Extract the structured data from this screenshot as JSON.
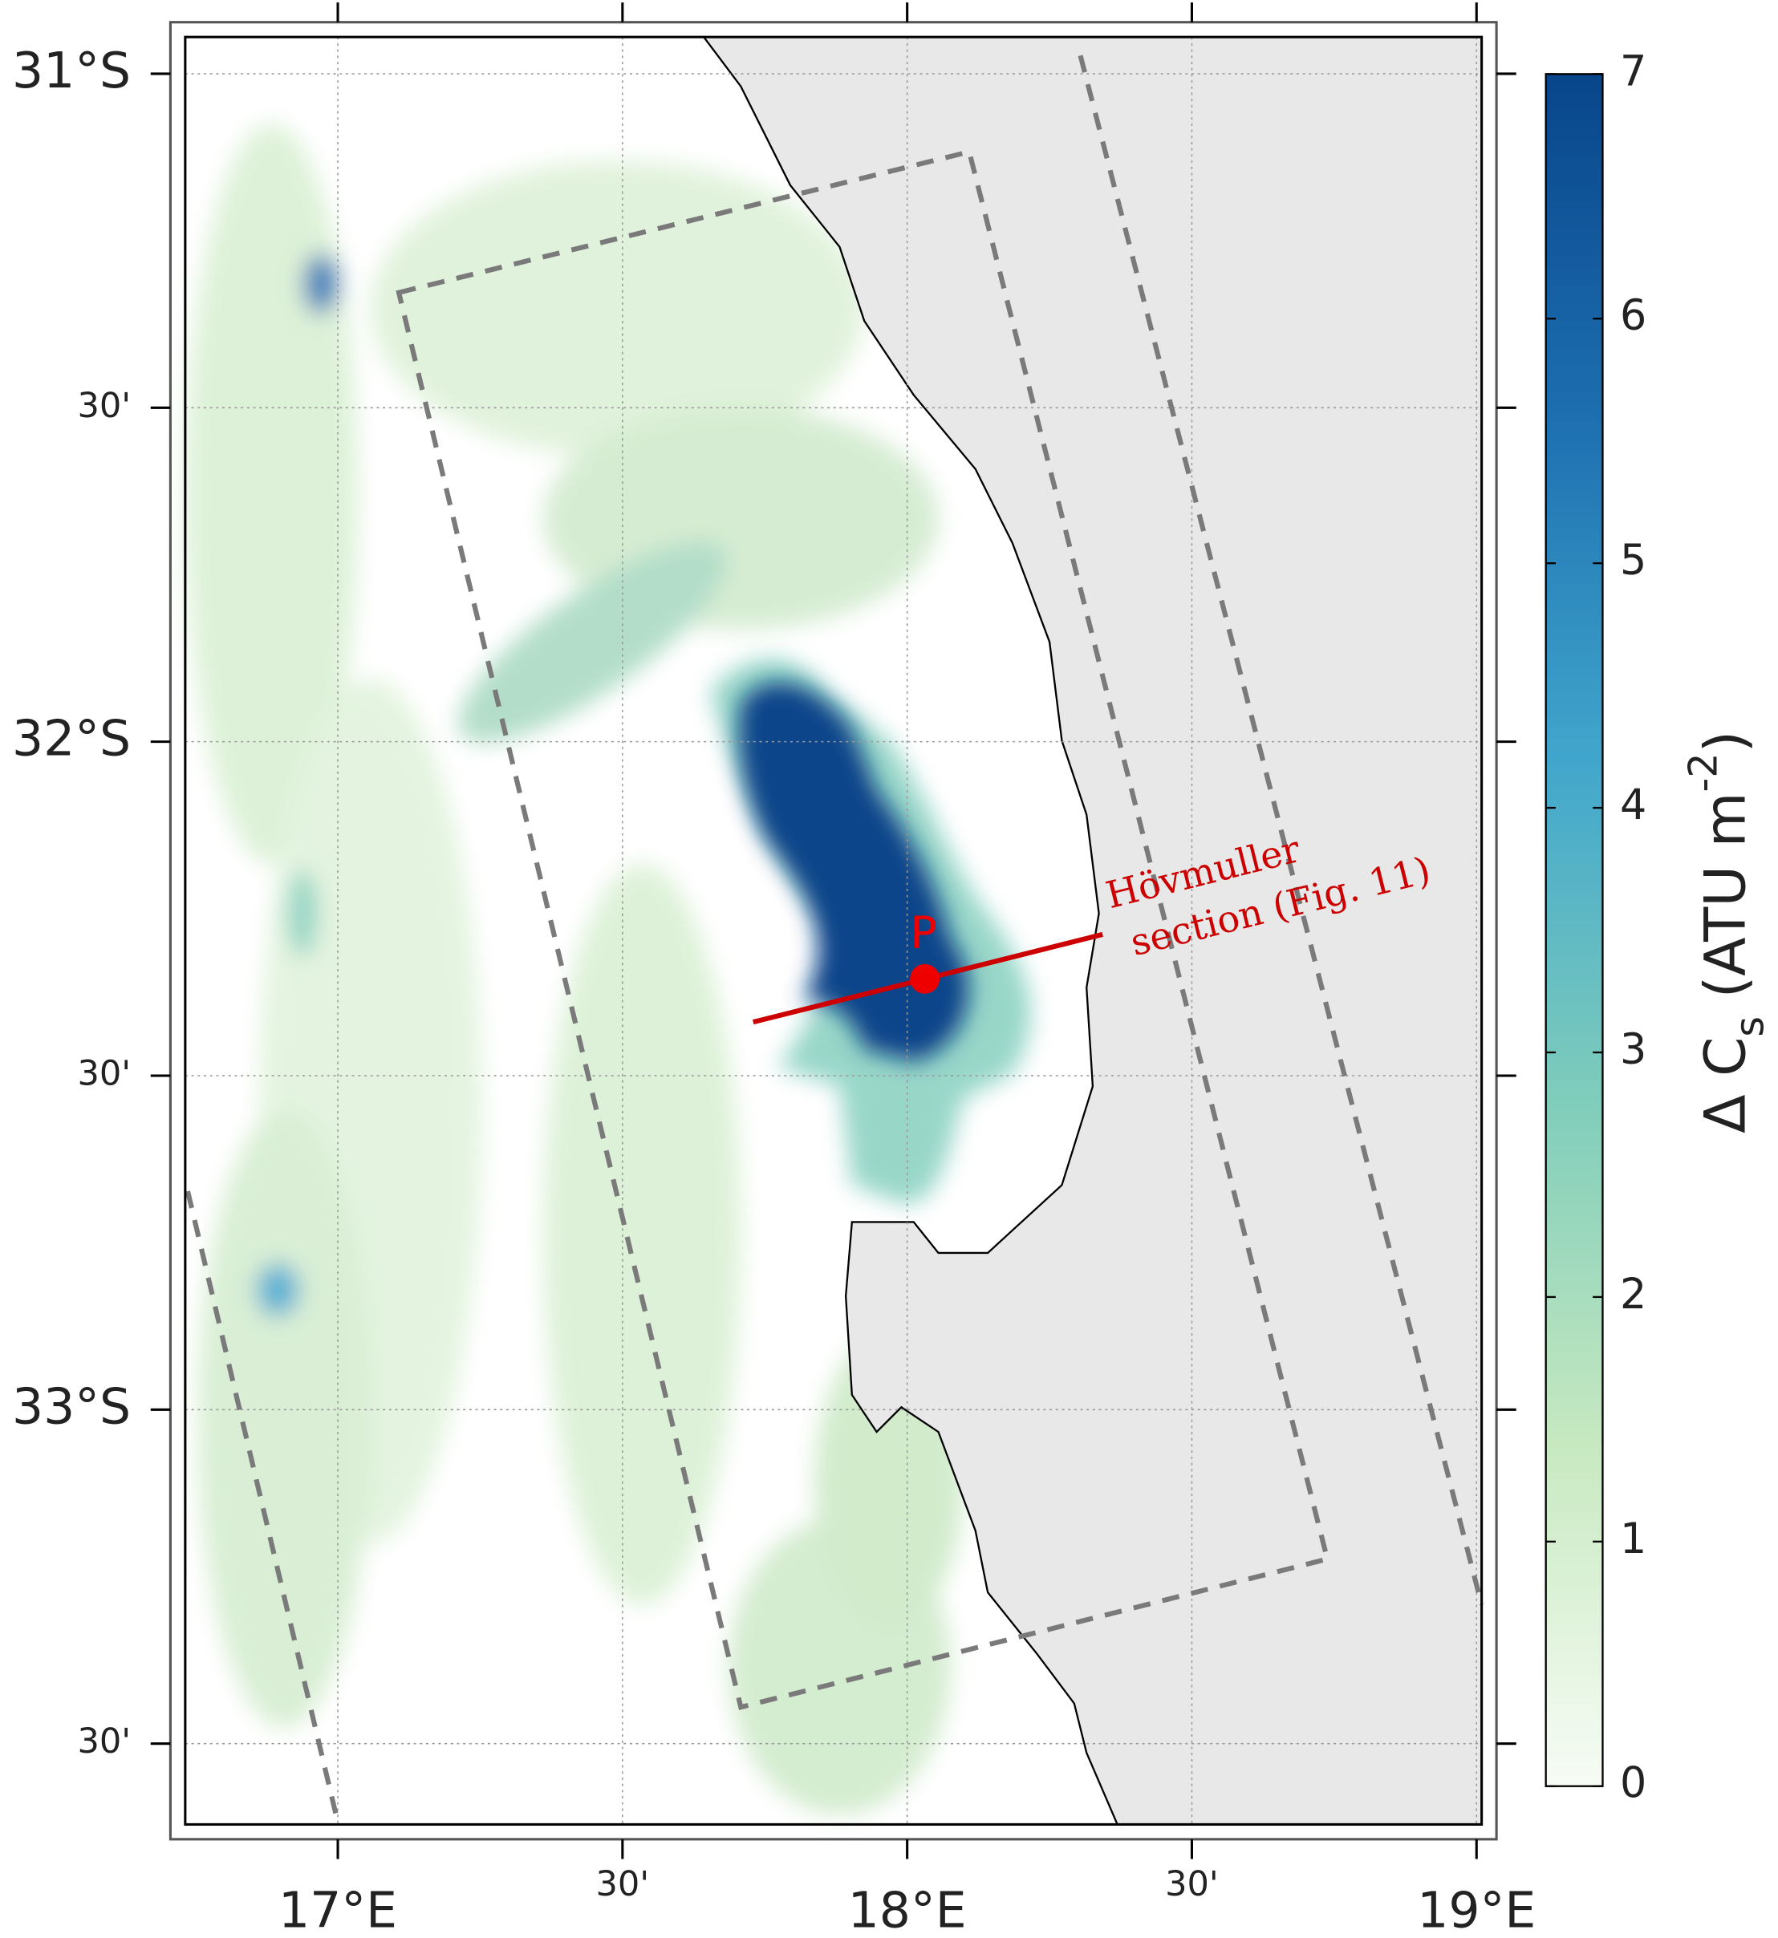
{
  "map": {
    "lon_lim": [
      16.732,
      19.009
    ],
    "lat_lim": [
      -33.621,
      -30.945
    ],
    "lon_ticks": [
      {
        "value": 17,
        "label": "17°E"
      },
      {
        "value": 17.5,
        "label": "30'"
      },
      {
        "value": 18,
        "label": "18°E"
      },
      {
        "value": 18.5,
        "label": "30'"
      },
      {
        "value": 19,
        "label": "19°E"
      }
    ],
    "lat_ticks": [
      {
        "value": -31,
        "label": "31°S"
      },
      {
        "value": -31.5,
        "label": "30'"
      },
      {
        "value": -32,
        "label": "32°S"
      },
      {
        "value": -32.5,
        "label": "30'"
      },
      {
        "value": -33,
        "label": "33°S"
      },
      {
        "value": -33.5,
        "label": "30'"
      }
    ],
    "grid": true,
    "colorbar": {
      "lim": [
        0,
        7
      ],
      "ticks": [
        0,
        1,
        2,
        3,
        4,
        5,
        6,
        7
      ],
      "colors": [
        "#f7fcf5",
        "#c7e9c0",
        "#7fcdbb",
        "#41a6cc",
        "#1d6fb0",
        "#08458a"
      ],
      "label": [
        "Δ C",
        "s",
        " (ATU m",
        "-2",
        ")"
      ]
    },
    "annotations": {
      "point": "P",
      "section": [
        "Hövmuller",
        "section (Fig. 11)"
      ]
    }
  }
}
